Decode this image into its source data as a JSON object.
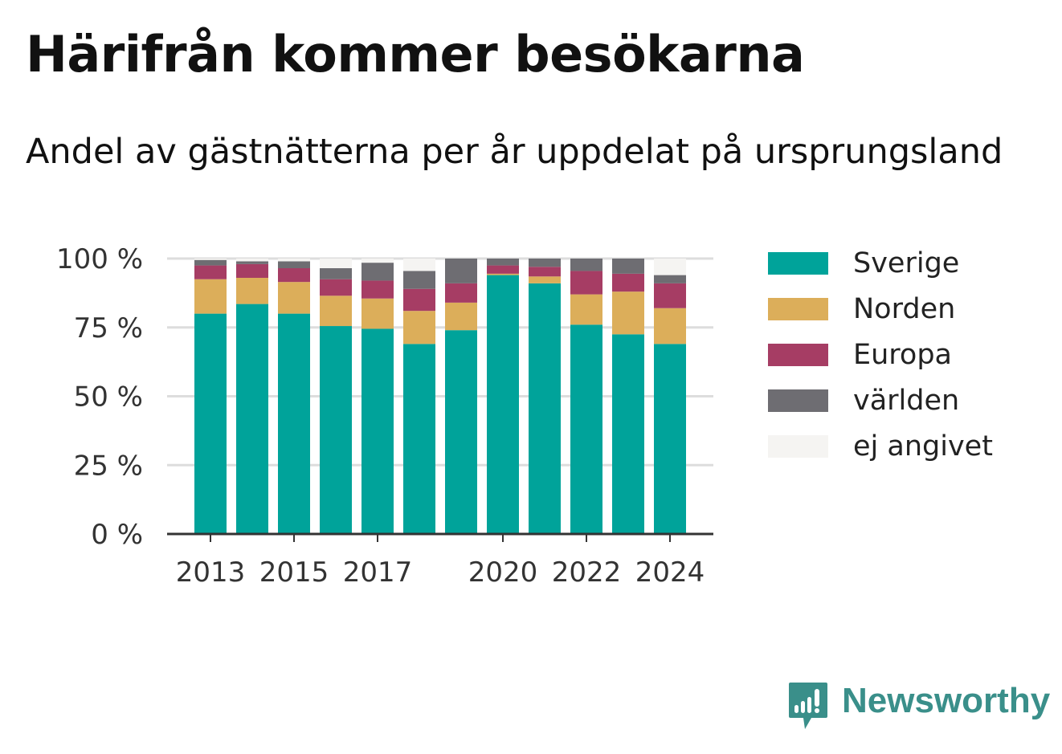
{
  "title": "Härifrån kommer besökarna",
  "subtitle": "Andel av gästnätterna per år uppdelat på ursprungsland",
  "brand": {
    "name": "Newsworthy",
    "icon": "newsworthy-logo-icon",
    "color": "#3a8f8a"
  },
  "chart_data": {
    "type": "bar",
    "stacked": true,
    "categories": [
      "2013",
      "2014",
      "2015",
      "2016",
      "2017",
      "2018",
      "2019",
      "2020",
      "2021",
      "2022",
      "2023",
      "2024"
    ],
    "x_tick_labels": [
      "2013",
      "2015",
      "2017",
      "2020",
      "2022",
      "2024"
    ],
    "y_tick_labels": [
      "0 %",
      "25 %",
      "50 %",
      "75 %",
      "100 %"
    ],
    "y_ticks": [
      0,
      25,
      50,
      75,
      100
    ],
    "ylim": [
      0,
      100
    ],
    "grid": true,
    "legend_position": "right",
    "series": [
      {
        "name": "Sverige",
        "color": "#00a39a",
        "values": [
          80,
          83.5,
          80,
          75.5,
          74.5,
          69,
          74,
          94,
          91,
          76,
          72.5,
          69
        ]
      },
      {
        "name": "Norden",
        "color": "#dcae5a",
        "values": [
          12.5,
          9.5,
          11.5,
          11,
          11,
          12,
          10,
          0.5,
          2.5,
          11,
          15.5,
          13
        ]
      },
      {
        "name": "Europa",
        "color": "#a63d64",
        "values": [
          5,
          5,
          5,
          6,
          6.5,
          8,
          7,
          3,
          3.5,
          8.5,
          6.5,
          9
        ]
      },
      {
        "name": "världen",
        "color": "#6e6d72",
        "values": [
          2,
          1,
          2.5,
          4,
          6.5,
          6.5,
          9,
          2.5,
          3,
          4.5,
          5.5,
          3
        ]
      },
      {
        "name": "ej angivet",
        "color": "#f5f4f2",
        "values": [
          0.5,
          1,
          1,
          3.5,
          1.5,
          4.5,
          0,
          0,
          0,
          0,
          0,
          6
        ]
      }
    ]
  }
}
